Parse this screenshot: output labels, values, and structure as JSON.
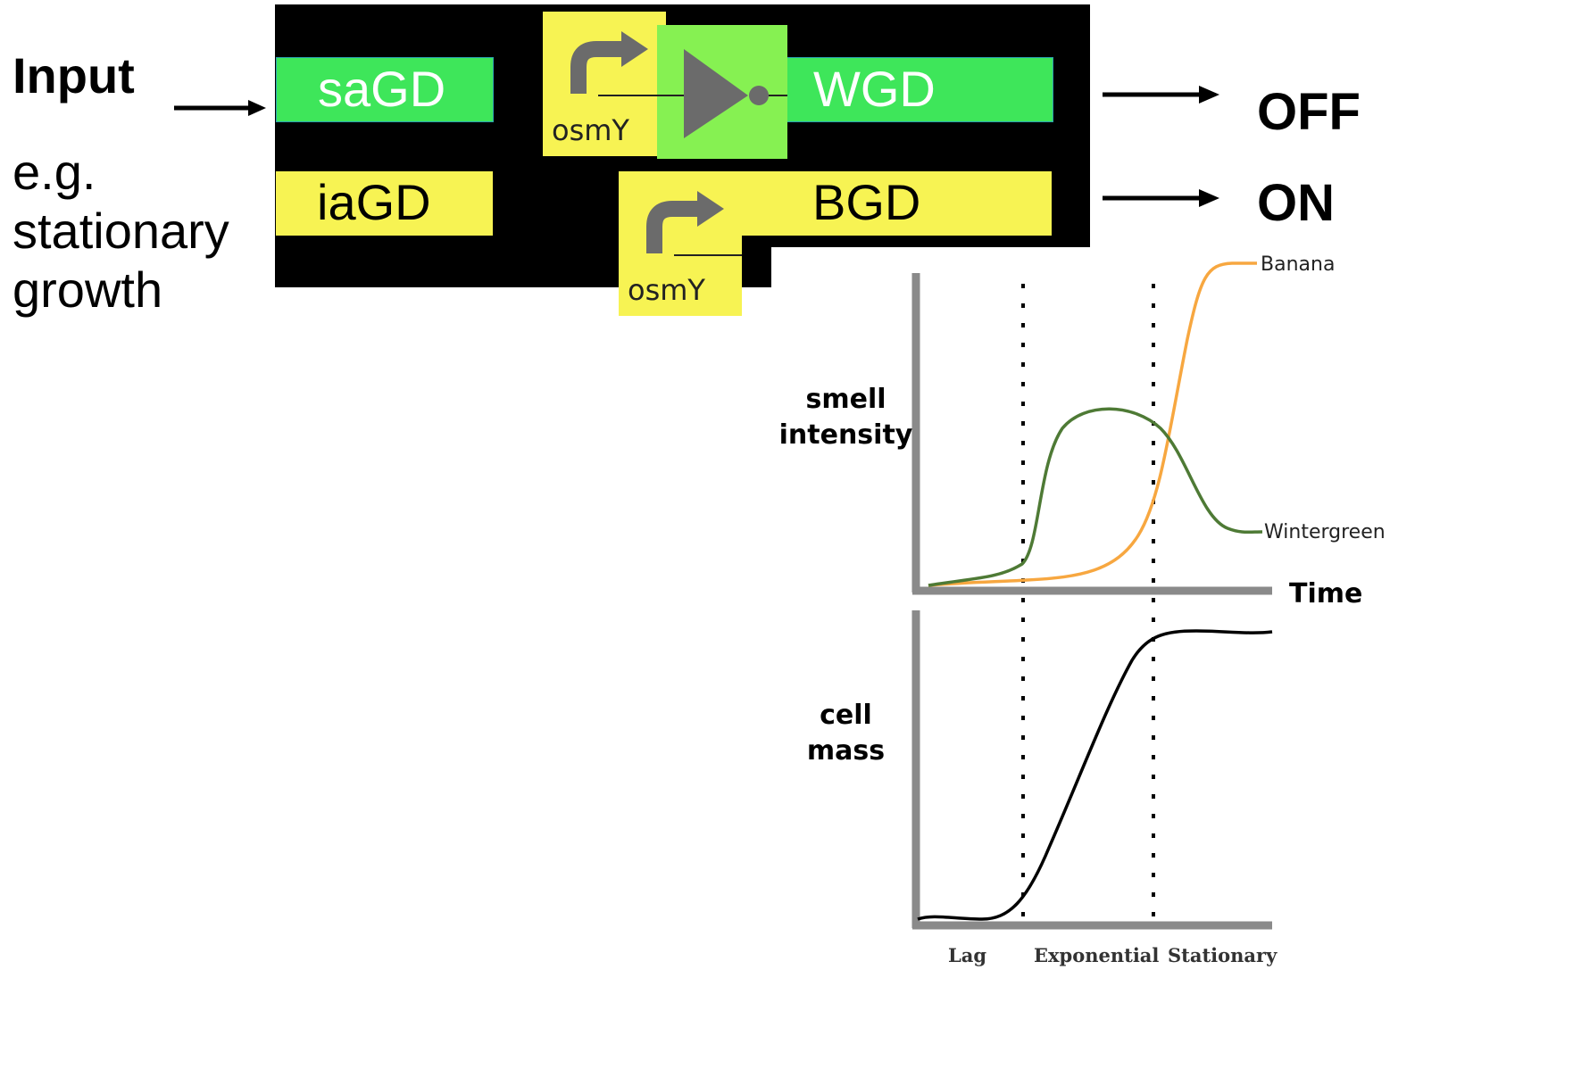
{
  "input": {
    "title": "Input",
    "example_line1": "e.g.",
    "example_line2": "stationary",
    "example_line3": "growth"
  },
  "genes": {
    "sensor": "saGD",
    "inverted_sensor": "iaGD",
    "output_top": "WGD",
    "output_bottom": "BGD"
  },
  "promoter_label": "osmY",
  "outputs": {
    "top_state": "OFF",
    "bottom_state": "ON"
  },
  "colors": {
    "green_bar": "#3ee65a",
    "green_block": "#86f152",
    "yellow": "#f7f353",
    "background_block": "#000000",
    "banana_curve": "#f7a740",
    "wintergreen_curve": "#4e7a35",
    "cell_mass_curve": "#000000"
  },
  "icons": {
    "promoter": "bent-arrow-promoter-icon",
    "inverter": "not-gate-icon",
    "arrow": "right-arrow-icon"
  },
  "plots": {
    "smell": {
      "ylabel_line1": "smell",
      "ylabel_line2": "intensity",
      "xlabel": "Time",
      "series": [
        {
          "name": "Banana"
        },
        {
          "name": "Wintergreen"
        }
      ]
    },
    "mass": {
      "ylabel_line1": "cell",
      "ylabel_line2": "mass",
      "phases": [
        "Lag",
        "Exponential",
        "Stationary"
      ]
    }
  }
}
